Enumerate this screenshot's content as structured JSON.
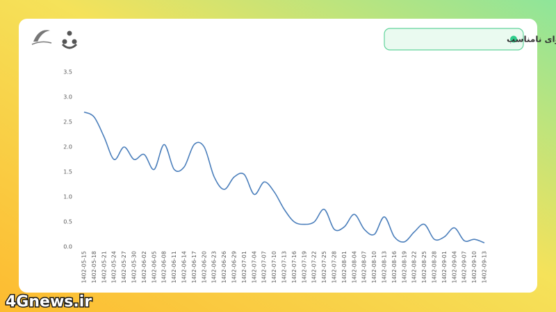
{
  "chart_data": {
    "type": "line",
    "title": "نمودار کاهش محتوای نامناسب",
    "watermark": "4Gnews.ir",
    "categories": [
      "1402-05-15",
      "1402-05-18",
      "1402-05-21",
      "1402-05-24",
      "1402-05-27",
      "1402-05-30",
      "1402-06-02",
      "1402-06-05",
      "1402-06-08",
      "1402-06-11",
      "1402-06-14",
      "1402-06-17",
      "1402-06-20",
      "1402-06-23",
      "1402-06-26",
      "1402-06-29",
      "1402-07-01",
      "1402-07-04",
      "1402-07-07",
      "1402-07-10",
      "1402-07-13",
      "1402-07-16",
      "1402-07-19",
      "1402-07-22",
      "1402-07-25",
      "1402-07-28",
      "1402-08-01",
      "1402-08-04",
      "1402-08-07",
      "1402-08-10",
      "1402-08-13",
      "1402-08-16",
      "1402-08-19",
      "1402-08-22",
      "1402-08-25",
      "1402-08-28",
      "1402-09-01",
      "1402-09-04",
      "1402-09-07",
      "1402-09-10",
      "1402-09-13"
    ],
    "values": [
      2.7,
      2.6,
      2.2,
      1.75,
      2.0,
      1.75,
      1.85,
      1.55,
      2.05,
      1.55,
      1.6,
      2.05,
      2.0,
      1.4,
      1.15,
      1.4,
      1.45,
      1.05,
      1.3,
      1.1,
      0.75,
      0.5,
      0.45,
      0.5,
      0.75,
      0.35,
      0.4,
      0.65,
      0.35,
      0.25,
      0.6,
      0.2,
      0.1,
      0.3,
      0.45,
      0.15,
      0.2,
      0.38,
      0.12,
      0.15,
      0.08
    ],
    "color": "#4a7ebb",
    "ylim": [
      0,
      3.5
    ],
    "yticks": [
      {
        "value": 0,
        "label": "0.0"
      },
      0.5,
      {
        "value": 1,
        "label": "1.0"
      },
      1.5,
      {
        "value": 2,
        "label": "2.0"
      },
      2.5,
      {
        "value": 3,
        "label": "3.0"
      },
      3.5
    ],
    "grid": false
  }
}
